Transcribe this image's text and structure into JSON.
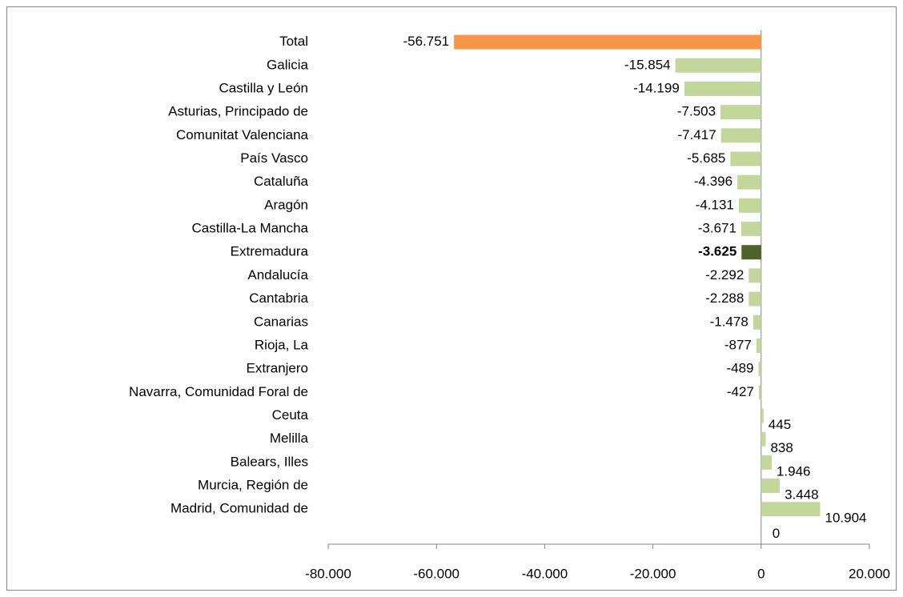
{
  "chart_data": {
    "type": "bar",
    "orientation": "horizontal",
    "categories": [
      "Total",
      "Galicia",
      "Castilla y León",
      "Asturias, Principado de",
      "Comunitat Valenciana",
      "País Vasco",
      "Cataluña",
      "Aragón",
      "Castilla-La Mancha",
      "Extremadura",
      "Andalucía",
      "Cantabria",
      "Canarias",
      "Rioja, La",
      "Extranjero",
      "Navarra, Comunidad Foral de",
      "Ceuta",
      "Melilla",
      "Balears, Illes",
      "Murcia, Región de",
      "Madrid, Comunidad de",
      null
    ],
    "values": [
      -56751,
      -15854,
      -14199,
      -7503,
      -7417,
      -5685,
      -4396,
      -4131,
      -3671,
      -3625,
      -2292,
      -2288,
      -1478,
      -877,
      -489,
      -427,
      445,
      838,
      1946,
      3448,
      10904,
      0
    ],
    "value_labels": [
      "-56.751",
      "-15.854",
      "-14.199",
      "-7.503",
      "-7.417",
      "-5.685",
      "-4.396",
      "-4.131",
      "-3.671",
      "-3.625",
      "-2.292",
      "-2.288",
      "-1.478",
      "-877",
      "-489",
      "-427",
      "445",
      "838",
      "1.946",
      "3.448",
      "10.904",
      "0"
    ],
    "colors": [
      "#f79646",
      "#c3d69b",
      "#c3d69b",
      "#c3d69b",
      "#c3d69b",
      "#c3d69b",
      "#c3d69b",
      "#c3d69b",
      "#c3d69b",
      "#4f6228",
      "#c3d69b",
      "#c3d69b",
      "#c3d69b",
      "#c3d69b",
      "#c3d69b",
      "#c3d69b",
      "#c3d69b",
      "#c3d69b",
      "#c3d69b",
      "#c3d69b",
      "#c3d69b",
      "#c3d69b"
    ],
    "bold_value_labels": [
      9
    ],
    "xlim": [
      -80000,
      20000
    ],
    "xticks": [
      {
        "value": -80000,
        "label": "-80.000"
      },
      {
        "value": -60000,
        "label": "-60.000"
      },
      {
        "value": -40000,
        "label": "-40.000"
      },
      {
        "value": -20000,
        "label": "-20.000"
      },
      0,
      {
        "value": 20000,
        "label": "20.000"
      }
    ]
  }
}
